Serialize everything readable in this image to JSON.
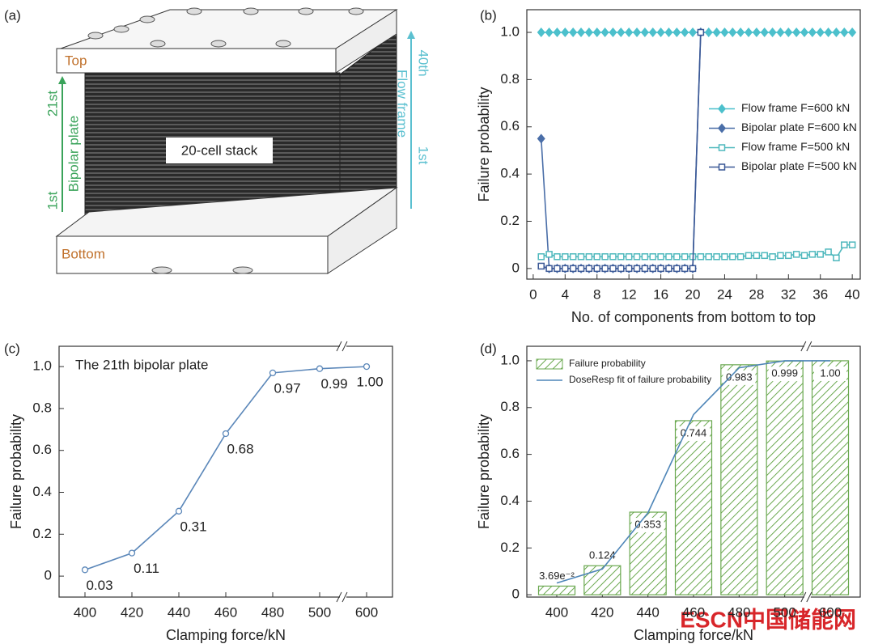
{
  "illustration": {
    "panel_label": "(a)",
    "top": "Top",
    "bottom": "Bottom",
    "stack": "20-cell stack",
    "bipolar_top": "21st",
    "bipolar": "Bipolar plate",
    "bipolar_bottom": "1st",
    "frame_top": "40th",
    "frame": "Flow frame",
    "frame_bottom": "1st"
  },
  "chart_data": [
    {
      "type": "line",
      "panel_label": "(b)",
      "x_label": "No. of components from bottom to top",
      "y_label": "Failure probability",
      "x": [
        1,
        2,
        3,
        4,
        5,
        6,
        7,
        8,
        9,
        10,
        11,
        12,
        13,
        14,
        15,
        16,
        17,
        18,
        19,
        20,
        21,
        22,
        23,
        24,
        25,
        26,
        27,
        28,
        29,
        30,
        31,
        32,
        33,
        34,
        35,
        36,
        37,
        38,
        39,
        40
      ],
      "xlim": [
        -0.8,
        41
      ],
      "xticks": [
        0,
        4,
        8,
        12,
        16,
        20,
        24,
        28,
        32,
        36,
        40
      ],
      "ylim": [
        -0.045,
        1.096
      ],
      "yticks": [
        0,
        0.2,
        0.4,
        0.6,
        0.8,
        {
          "value": 1,
          "label": "1.0"
        }
      ],
      "legend": "right",
      "series": [
        {
          "name": "Flow frame F=600 kN",
          "color": "#4cc0cc",
          "marker": "diamond",
          "values": [
            1,
            1,
            1,
            1,
            1,
            1,
            1,
            1,
            1,
            1,
            1,
            1,
            1,
            1,
            1,
            1,
            1,
            1,
            1,
            1,
            1,
            1,
            1,
            1,
            1,
            1,
            1,
            1,
            1,
            1,
            1,
            1,
            1,
            1,
            1,
            1,
            1,
            1,
            1,
            1
          ]
        },
        {
          "name": "Bipolar plate F=600 kN",
          "color": "#4a6ea8",
          "marker": "diamond",
          "values": [
            0.55,
            0,
            0,
            0,
            0,
            0,
            0,
            0,
            0,
            0,
            0,
            0,
            0,
            0,
            0,
            0,
            0,
            0,
            0,
            0,
            1,
            null,
            null,
            null,
            null,
            null,
            null,
            null,
            null,
            null,
            null,
            null,
            null,
            null,
            null,
            null,
            null,
            null,
            null,
            null
          ]
        },
        {
          "name": "Flow frame F=500 kN",
          "color": "#4fb8bd",
          "marker": "square-open",
          "values": [
            0.05,
            0.06,
            0.05,
            0.05,
            0.05,
            0.05,
            0.05,
            0.05,
            0.05,
            0.05,
            0.05,
            0.05,
            0.05,
            0.05,
            0.05,
            0.05,
            0.05,
            0.05,
            0.05,
            0.05,
            0.05,
            0.05,
            0.05,
            0.05,
            0.05,
            0.05,
            0.055,
            0.055,
            0.055,
            0.05,
            0.055,
            0.055,
            0.06,
            0.055,
            0.06,
            0.06,
            0.07,
            0.045,
            0.1,
            0.1
          ]
        },
        {
          "name": "Bipolar plate F=500 kN",
          "color": "#3a5896",
          "marker": "square-open",
          "values": [
            0.01,
            0,
            0,
            0,
            0,
            0,
            0,
            0,
            0,
            0,
            0,
            0,
            0,
            0,
            0,
            0,
            0,
            0,
            0,
            0,
            1,
            null,
            null,
            null,
            null,
            null,
            null,
            null,
            null,
            null,
            null,
            null,
            null,
            null,
            null,
            null,
            null,
            null,
            null,
            null
          ]
        }
      ]
    },
    {
      "type": "line",
      "panel_label": "(c)",
      "annotation": "The 21th bipolar plate",
      "x_label": "Clamping force/kN",
      "y_label": "Failure probability",
      "categories": [
        "400",
        "420",
        "440",
        "460",
        "480",
        "500",
        "600"
      ],
      "axis_break": true,
      "ylim": [
        -0.1,
        1.097
      ],
      "yticks": [
        0,
        0.2,
        0.4,
        0.6,
        0.8,
        {
          "value": 1,
          "label": "1.0"
        }
      ],
      "series": [
        {
          "color": "#5b87b9",
          "marker": "circle-open",
          "values": [
            0.03,
            0.11,
            0.31,
            0.68,
            0.97,
            0.99,
            1.0
          ],
          "value_labels": [
            "0.03",
            "0.11",
            "0.31",
            "0.68",
            "0.97",
            "0.99",
            "1.00"
          ]
        }
      ]
    },
    {
      "type": "bar",
      "panel_label": "(d)",
      "x_label": "Clamping force/kN",
      "y_label": "Failure probability",
      "categories": [
        "400",
        "420",
        "440",
        "460",
        "480",
        "500",
        "600"
      ],
      "axis_break": true,
      "ylim": [
        -0.01,
        1.062
      ],
      "yticks": [
        0,
        0.2,
        0.4,
        0.6,
        0.8,
        {
          "value": 1,
          "label": "1.0"
        }
      ],
      "legend": "upper left",
      "series": [
        {
          "name": "Failure probability",
          "type": "bar",
          "color": "#6aa84f",
          "values": [
            0.0369,
            0.124,
            0.353,
            0.744,
            0.983,
            0.999,
            1.0
          ],
          "value_labels": [
            "3.69e⁻²",
            "0.124",
            "0.353",
            "0.744",
            "0.983",
            "0.999",
            "1.00"
          ]
        },
        {
          "name": "DoseResp fit of failure probability",
          "type": "line",
          "color": "#4f86b8",
          "values": [
            0.05,
            0.11,
            0.35,
            0.77,
            0.97,
            1.0,
            1.0
          ]
        }
      ]
    }
  ],
  "watermark": "ESCN中国储能网"
}
